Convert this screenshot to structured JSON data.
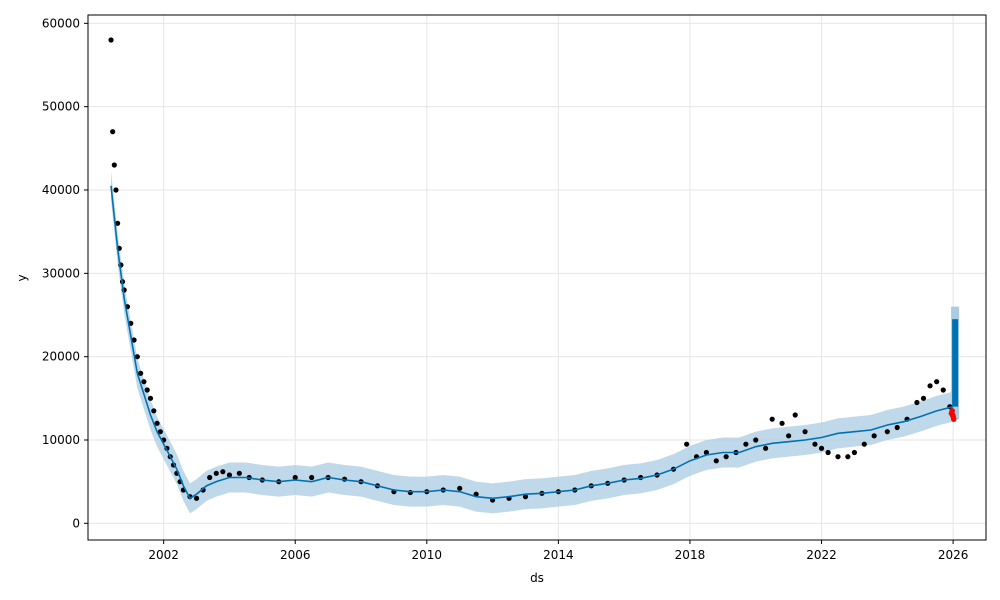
{
  "chart_data": {
    "type": "line",
    "xlabel": "ds",
    "ylabel": "y",
    "xlim": [
      1999.7,
      2027.0
    ],
    "ylim": [
      -2000,
      61000
    ],
    "x_ticks": [
      2002,
      2006,
      2010,
      2014,
      2018,
      2022,
      2026
    ],
    "x_tick_labels": [
      "2002",
      "2006",
      "2010",
      "2014",
      "2018",
      "2022",
      "2026"
    ],
    "y_ticks": [
      0,
      10000,
      20000,
      30000,
      40000,
      50000,
      60000
    ],
    "y_tick_labels": [
      "0",
      "10000",
      "20000",
      "30000",
      "40000",
      "50000",
      "60000"
    ],
    "grid": true,
    "colors": {
      "observed": "#000000",
      "forecast": "#0072B2",
      "interval": "#a9cce3",
      "highlight": "#ff0000"
    },
    "observed": {
      "x": [
        2000.4,
        2000.45,
        2000.5,
        2000.55,
        2000.6,
        2000.65,
        2000.7,
        2000.75,
        2000.8,
        2000.9,
        2001.0,
        2001.1,
        2001.2,
        2001.3,
        2001.4,
        2001.5,
        2001.6,
        2001.7,
        2001.8,
        2001.9,
        2002.0,
        2002.1,
        2002.2,
        2002.3,
        2002.4,
        2002.5,
        2002.6,
        2002.8,
        2003.0,
        2003.2,
        2003.4,
        2003.6,
        2003.8,
        2004.0,
        2004.3,
        2004.6,
        2005.0,
        2005.5,
        2006.0,
        2006.5,
        2007.0,
        2007.5,
        2008.0,
        2008.5,
        2009.0,
        2009.5,
        2010.0,
        2010.5,
        2011.0,
        2011.5,
        2012.0,
        2012.5,
        2013.0,
        2013.5,
        2014.0,
        2014.5,
        2015.0,
        2015.5,
        2016.0,
        2016.5,
        2017.0,
        2017.5,
        2017.9,
        2018.2,
        2018.5,
        2018.8,
        2019.1,
        2019.4,
        2019.7,
        2020.0,
        2020.3,
        2020.5,
        2020.8,
        2021.0,
        2021.2,
        2021.5,
        2021.8,
        2022.0,
        2022.2,
        2022.5,
        2022.8,
        2023.0,
        2023.3,
        2023.6,
        2024.0,
        2024.3,
        2024.6,
        2024.9,
        2025.1,
        2025.3,
        2025.5,
        2025.7,
        2025.9
      ],
      "y": [
        58000,
        47000,
        43000,
        40000,
        36000,
        33000,
        31000,
        29000,
        28000,
        26000,
        24000,
        22000,
        20000,
        18000,
        17000,
        16000,
        15000,
        13500,
        12000,
        11000,
        10000,
        9000,
        8000,
        7000,
        6000,
        5000,
        4000,
        3200,
        3000,
        4000,
        5500,
        6000,
        6200,
        5800,
        6000,
        5500,
        5200,
        5000,
        5500,
        5500,
        5500,
        5300,
        5000,
        4500,
        3800,
        3700,
        3800,
        4000,
        4200,
        3500,
        2800,
        3000,
        3200,
        3600,
        3800,
        4000,
        4500,
        4800,
        5200,
        5500,
        5800,
        6500,
        9500,
        8000,
        8500,
        7500,
        8000,
        8500,
        9500,
        10000,
        9000,
        12500,
        12000,
        10500,
        13000,
        11000,
        9500,
        9000,
        8500,
        8000,
        8000,
        8500,
        9500,
        10500,
        11000,
        11500,
        12500,
        14500,
        15000,
        16500,
        17000,
        16000,
        14000
      ]
    },
    "forecast": {
      "x": [
        2000.4,
        2000.6,
        2000.8,
        2001.0,
        2001.2,
        2001.4,
        2001.6,
        2001.8,
        2002.0,
        2002.2,
        2002.4,
        2002.6,
        2002.8,
        2003.0,
        2003.3,
        2003.6,
        2004.0,
        2004.5,
        2005.0,
        2005.5,
        2006.0,
        2006.5,
        2007.0,
        2007.5,
        2008.0,
        2008.5,
        2009.0,
        2009.5,
        2010.0,
        2010.5,
        2011.0,
        2011.5,
        2012.0,
        2012.5,
        2013.0,
        2013.5,
        2014.0,
        2014.5,
        2015.0,
        2015.5,
        2016.0,
        2016.5,
        2017.0,
        2017.5,
        2018.0,
        2018.5,
        2019.0,
        2019.5,
        2020.0,
        2020.5,
        2021.0,
        2021.5,
        2022.0,
        2022.5,
        2023.0,
        2023.5,
        2024.0,
        2024.5,
        2025.0,
        2025.5,
        2026.0
      ],
      "y": [
        40500,
        33000,
        27000,
        22500,
        18000,
        15500,
        13000,
        11000,
        9500,
        8000,
        6500,
        4500,
        3000,
        3500,
        4500,
        5000,
        5500,
        5500,
        5200,
        5000,
        5200,
        5000,
        5500,
        5200,
        5000,
        4500,
        4000,
        3800,
        3800,
        4000,
        3800,
        3200,
        3000,
        3200,
        3500,
        3600,
        3800,
        4000,
        4500,
        4800,
        5200,
        5400,
        5800,
        6500,
        7500,
        8200,
        8500,
        8500,
        9200,
        9600,
        9800,
        10000,
        10300,
        10800,
        11000,
        11200,
        11800,
        12200,
        12800,
        13500,
        14000
      ]
    },
    "interval_halfwidth": 1800,
    "forecast_spike": {
      "x": 2026.0,
      "y_min": 14000,
      "y_max": 24500,
      "band_min": 12500,
      "band_max": 26000
    },
    "highlighted_points": {
      "x": [
        2025.95,
        2025.97,
        2025.99,
        2026.0,
        2026.02
      ],
      "y": [
        13200,
        13500,
        13000,
        12800,
        12500
      ]
    }
  }
}
